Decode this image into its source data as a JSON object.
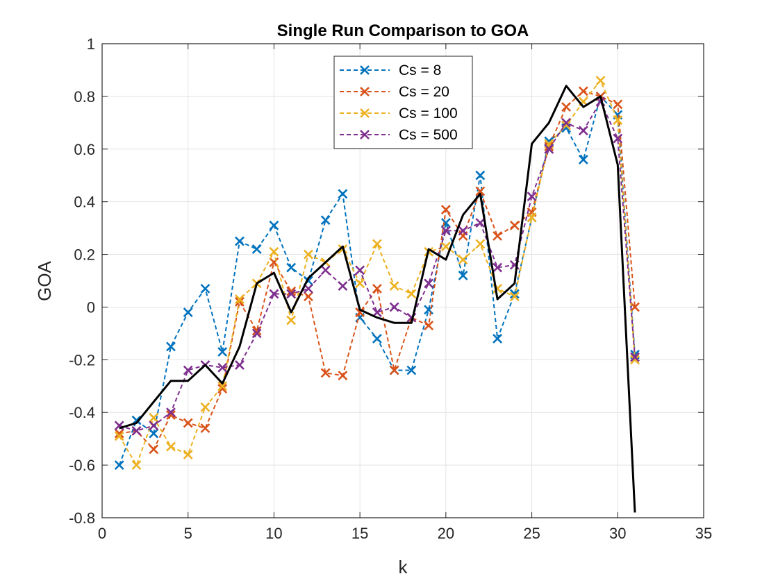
{
  "chart_data": {
    "type": "line",
    "title": "Single Run Comparison to GOA",
    "xlabel": "k",
    "ylabel": "GOA",
    "xlim": [
      0,
      35
    ],
    "ylim": [
      -0.8,
      1
    ],
    "xticks": [
      0,
      5,
      10,
      15,
      20,
      25,
      30,
      35
    ],
    "yticks": [
      -0.8,
      -0.6,
      -0.4,
      -0.2,
      0,
      0.2,
      0.4,
      0.6,
      0.8,
      1
    ],
    "xtick_labels": [
      "0",
      "5",
      "10",
      "15",
      "20",
      "25",
      "30",
      "35"
    ],
    "ytick_labels": [
      "-0.8",
      "-0.6",
      "-0.4",
      "-0.2",
      "0",
      "0.2",
      "0.4",
      "0.6",
      "0.8",
      "1"
    ],
    "grid": true,
    "legend_position": "top-center",
    "x": [
      1,
      2,
      3,
      4,
      5,
      6,
      7,
      8,
      9,
      10,
      11,
      12,
      13,
      14,
      15,
      16,
      17,
      18,
      19,
      20,
      21,
      22,
      23,
      24,
      25,
      26,
      27,
      28,
      29,
      30,
      31
    ],
    "series": [
      {
        "name": "Cs = 8",
        "style": "dashed-x",
        "color": "#0072BD",
        "values": [
          -0.6,
          -0.43,
          -0.48,
          -0.15,
          -0.02,
          0.07,
          -0.17,
          0.25,
          0.22,
          0.31,
          0.15,
          0.1,
          0.33,
          0.43,
          -0.04,
          -0.12,
          -0.24,
          -0.24,
          -0.01,
          0.32,
          0.12,
          0.5,
          -0.12,
          0.05,
          0.34,
          0.63,
          0.68,
          0.56,
          0.8,
          0.73,
          -0.18
        ]
      },
      {
        "name": "Cs = 20",
        "style": "dashed-x",
        "color": "#D95319",
        "values": [
          -0.48,
          -0.47,
          -0.54,
          -0.41,
          -0.44,
          -0.46,
          -0.31,
          0.02,
          -0.09,
          0.17,
          0.06,
          0.04,
          -0.25,
          -0.26,
          -0.02,
          0.07,
          -0.24,
          -0.04,
          -0.07,
          0.37,
          0.27,
          0.44,
          0.27,
          0.31,
          0.36,
          0.61,
          0.76,
          0.82,
          0.8,
          0.77,
          0.0
        ]
      },
      {
        "name": "Cs = 100",
        "style": "dashed-x",
        "color": "#EDB120",
        "values": [
          -0.49,
          -0.6,
          -0.42,
          -0.53,
          -0.56,
          -0.38,
          -0.3,
          0.03,
          0.09,
          0.21,
          -0.05,
          0.2,
          0.17,
          0.22,
          0.09,
          0.24,
          0.08,
          0.05,
          0.21,
          0.23,
          0.18,
          0.24,
          0.07,
          0.04,
          0.34,
          0.62,
          0.69,
          0.78,
          0.86,
          0.71,
          -0.2
        ]
      },
      {
        "name": "Cs = 500",
        "style": "dashed-x",
        "color": "#7E2F8E",
        "values": [
          -0.45,
          -0.47,
          -0.45,
          -0.4,
          -0.24,
          -0.22,
          -0.23,
          -0.22,
          -0.1,
          0.05,
          0.05,
          0.07,
          0.14,
          0.08,
          0.14,
          -0.02,
          0.0,
          -0.04,
          0.09,
          0.29,
          0.29,
          0.32,
          0.15,
          0.16,
          0.42,
          0.6,
          0.7,
          0.67,
          0.78,
          0.64,
          -0.19
        ]
      },
      {
        "name": "GOA",
        "style": "solid",
        "color": "#000000",
        "in_legend": false,
        "values": [
          -0.46,
          -0.44,
          -0.36,
          -0.28,
          -0.28,
          -0.22,
          -0.29,
          -0.15,
          0.09,
          0.13,
          -0.02,
          0.11,
          0.17,
          0.23,
          -0.01,
          -0.04,
          -0.06,
          -0.06,
          0.22,
          0.18,
          0.35,
          0.43,
          0.03,
          0.09,
          0.62,
          0.7,
          0.84,
          0.76,
          0.8,
          0.54,
          -0.78
        ]
      }
    ]
  }
}
